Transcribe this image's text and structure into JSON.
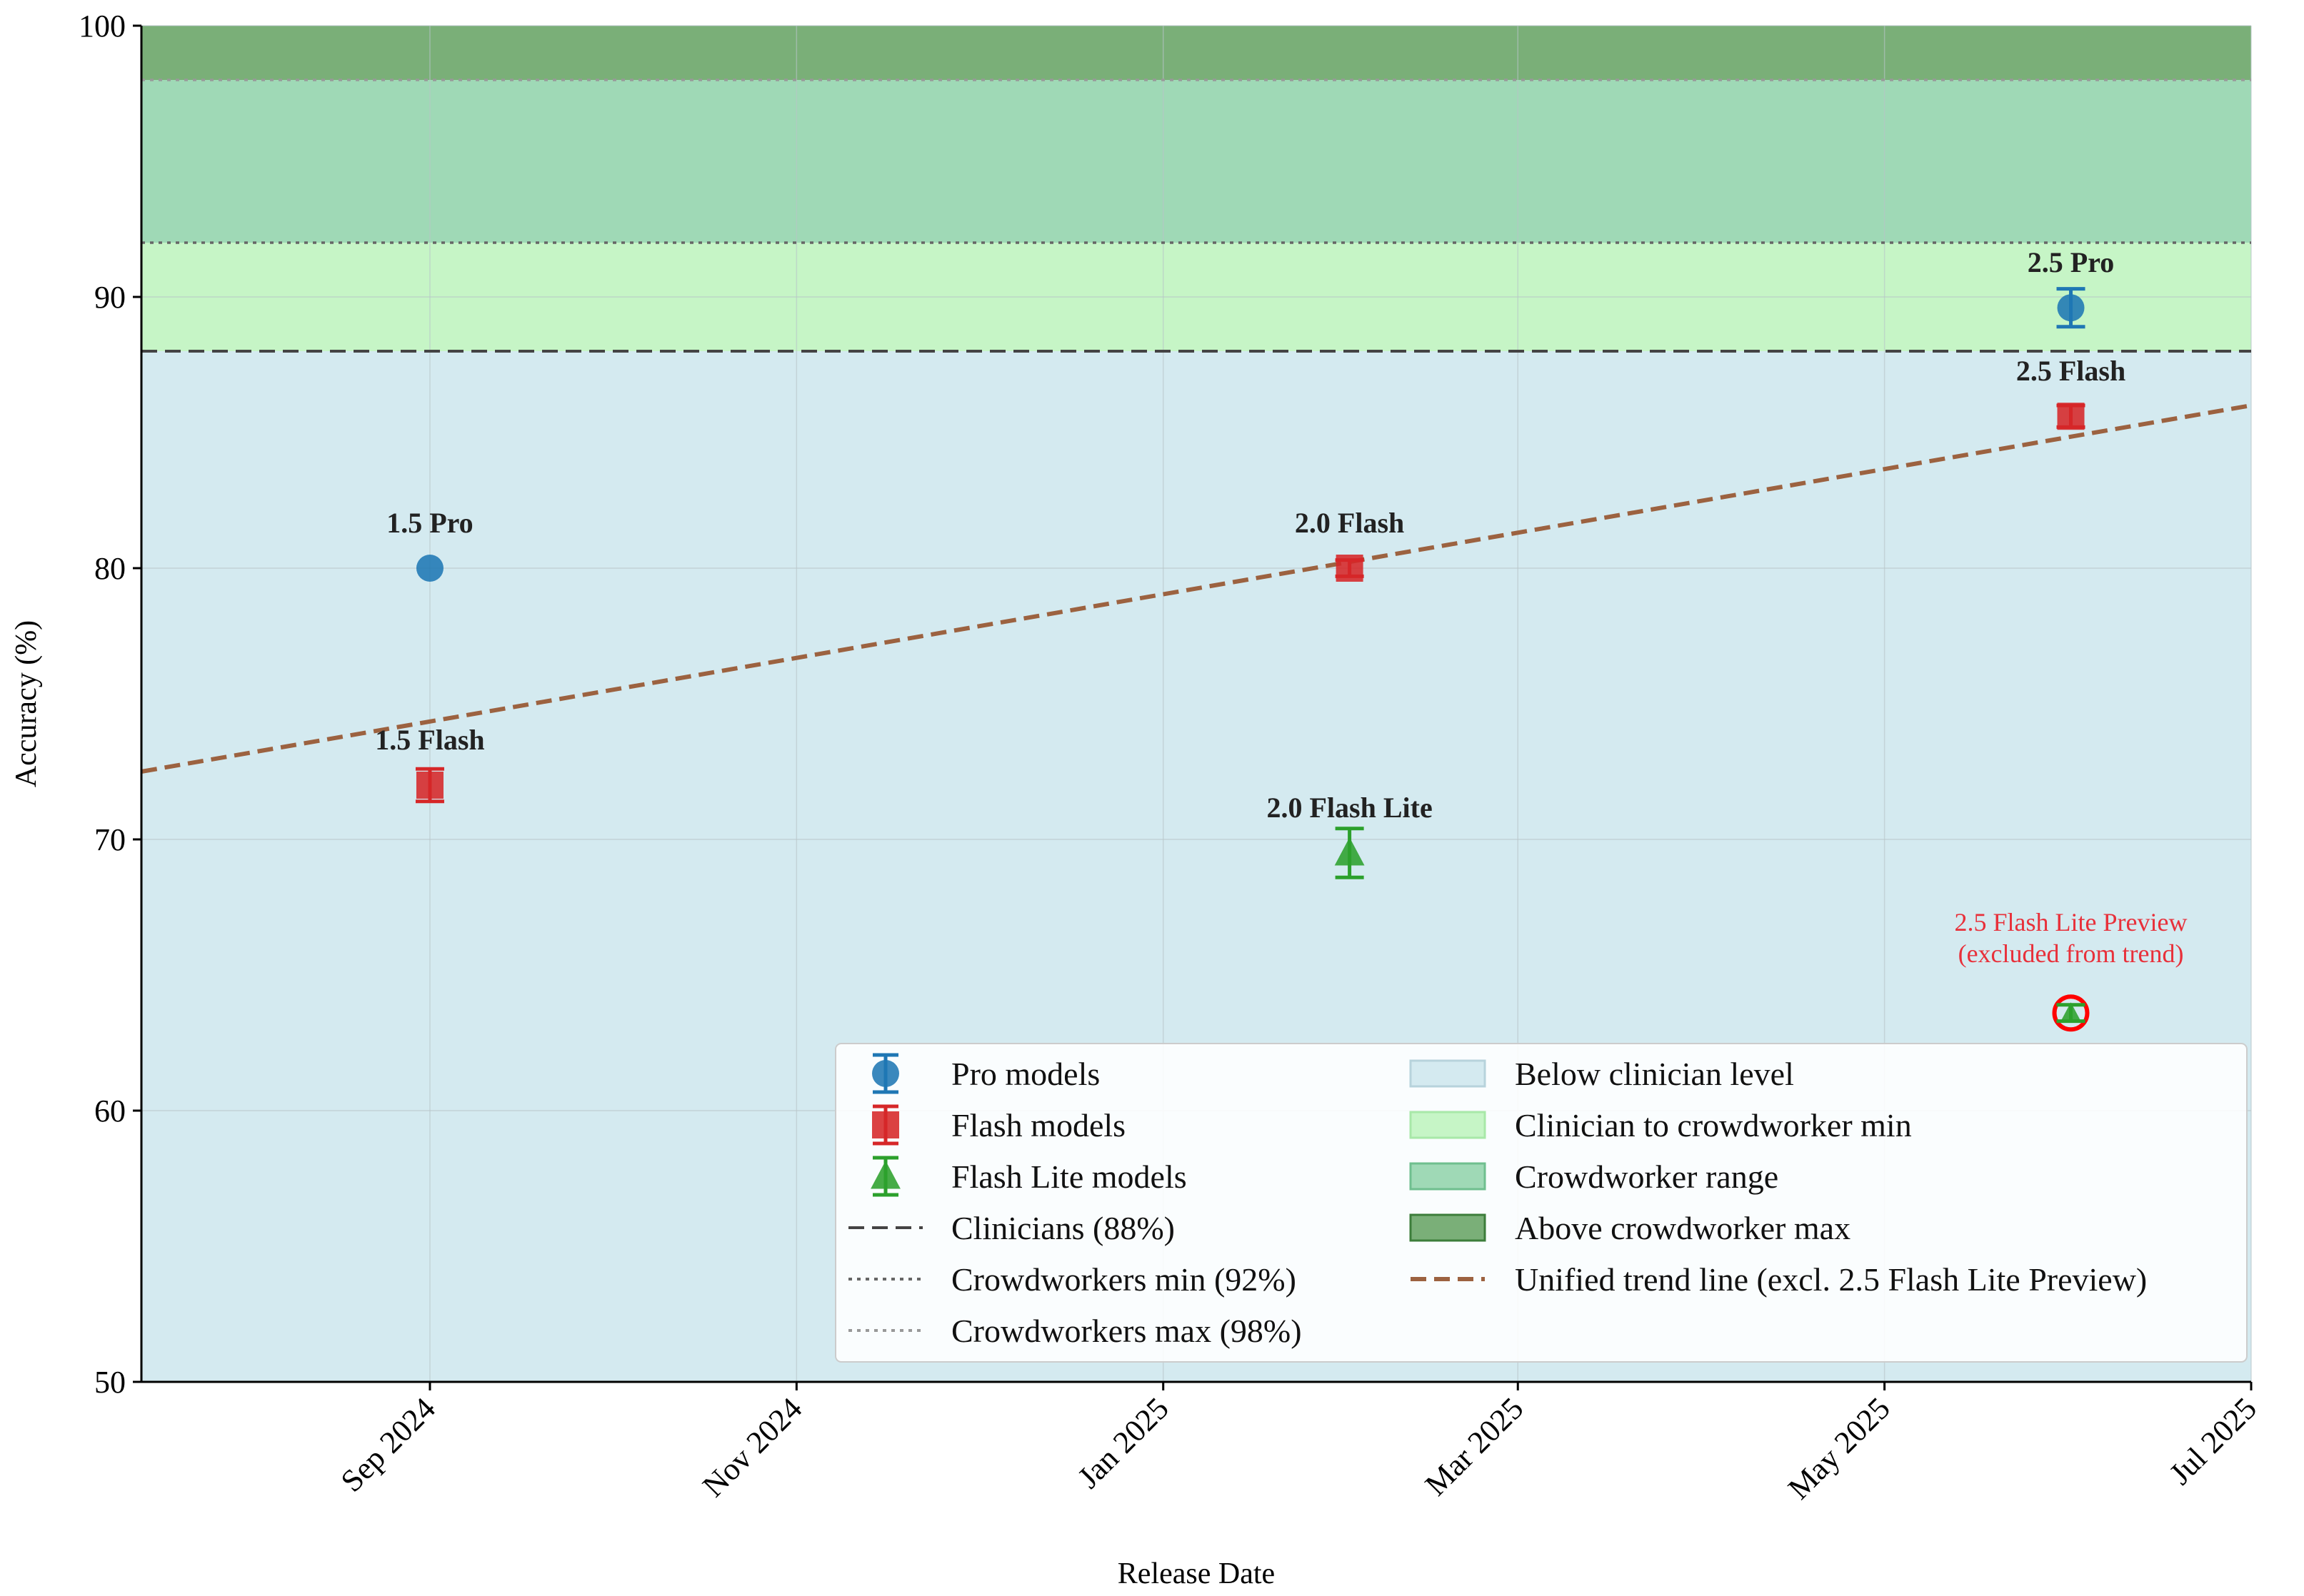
{
  "chart_data": {
    "type": "scatter",
    "xlabel": "Release Date",
    "ylabel": "Accuracy (%)",
    "xlim": [
      "2024-07-15",
      "2025-07-01"
    ],
    "ylim": [
      50,
      100
    ],
    "y_ticks": [
      50,
      60,
      70,
      80,
      90,
      100
    ],
    "x_ticks": [
      {
        "date": "2024-09-01",
        "label": "Sep 2024"
      },
      {
        "date": "2024-11-01",
        "label": "Nov 2024"
      },
      {
        "date": "2025-01-01",
        "label": "Jan 2025"
      },
      {
        "date": "2025-03-01",
        "label": "Mar 2025"
      },
      {
        "date": "2025-05-01",
        "label": "May 2025"
      },
      {
        "date": "2025-07-01",
        "label": "Jul 2025"
      }
    ],
    "grid": true,
    "series": [
      {
        "name": "Pro models",
        "marker": "circle",
        "color": "#1f77b4",
        "points": [
          {
            "label": "1.5 Pro",
            "date": "2024-09-01",
            "y": 80.0,
            "err": 0
          },
          {
            "label": "2.5 Pro",
            "date": "2025-06-01",
            "y": 89.6,
            "err": 0.7
          }
        ]
      },
      {
        "name": "Flash models",
        "marker": "square",
        "color": "#d62728",
        "points": [
          {
            "label": "1.5 Flash",
            "date": "2024-09-01",
            "y": 72.0,
            "err": 0.6
          },
          {
            "label": "2.0 Flash",
            "date": "2025-02-01",
            "y": 80.0,
            "err": 0.3
          },
          {
            "label": "2.5 Flash",
            "date": "2025-06-01",
            "y": 85.6,
            "err": 0.4
          }
        ]
      },
      {
        "name": "Flash Lite models",
        "marker": "triangle",
        "color": "#2ca02c",
        "points": [
          {
            "label": "2.0 Flash Lite",
            "date": "2025-02-01",
            "y": 69.5,
            "err": 0.9
          },
          {
            "date": "2025-06-01",
            "y": 63.6,
            "err": 0.3,
            "excluded": true
          }
        ]
      }
    ],
    "reference_lines": [
      {
        "name": "Clinicians (88%)",
        "y": 88,
        "style": "dashed",
        "color": "#444444"
      },
      {
        "name": "Crowdworkers min (92%)",
        "y": 92,
        "style": "dotted",
        "color": "#666666"
      },
      {
        "name": "Crowdworkers max (98%)",
        "y": 98,
        "style": "dotted",
        "color": "#999999"
      }
    ],
    "bands": [
      {
        "name": "Below clinician level",
        "from": 50,
        "to": 88,
        "color": "#d4eaf0"
      },
      {
        "name": "Clinician to crowdworker min",
        "from": 88,
        "to": 92,
        "color": "#c6f5c6"
      },
      {
        "name": "Crowdworker range",
        "from": 92,
        "to": 98,
        "color": "#9fd9b6"
      },
      {
        "name": "Above crowdworker max",
        "from": 98,
        "to": 100,
        "color": "#7aaf78"
      }
    ],
    "trend": {
      "name": "Unified trend line (excl. 2.5 Flash Lite Preview)",
      "color": "#9c6240",
      "start": {
        "date": "2024-07-15",
        "y": 72.5
      },
      "end": {
        "date": "2025-07-01",
        "y": 86.0
      }
    },
    "annotation": {
      "lines": [
        "2.5 Flash Lite Preview",
        "(excluded from trend)"
      ],
      "color": "#e8303a",
      "date": "2025-06-01",
      "y": 63.6
    },
    "legend": {
      "position": "lower-right",
      "left_column": [
        "Pro models",
        "Flash models",
        "Flash Lite models",
        "Clinicians (88%)",
        "Crowdworkers min (92%)",
        "Crowdworkers max (98%)"
      ],
      "right_column": [
        "Below clinician level",
        "Clinician to crowdworker min",
        "Crowdworker range",
        "Above crowdworker max",
        "Unified trend line (excl. 2.5 Flash Lite Preview)"
      ]
    }
  }
}
